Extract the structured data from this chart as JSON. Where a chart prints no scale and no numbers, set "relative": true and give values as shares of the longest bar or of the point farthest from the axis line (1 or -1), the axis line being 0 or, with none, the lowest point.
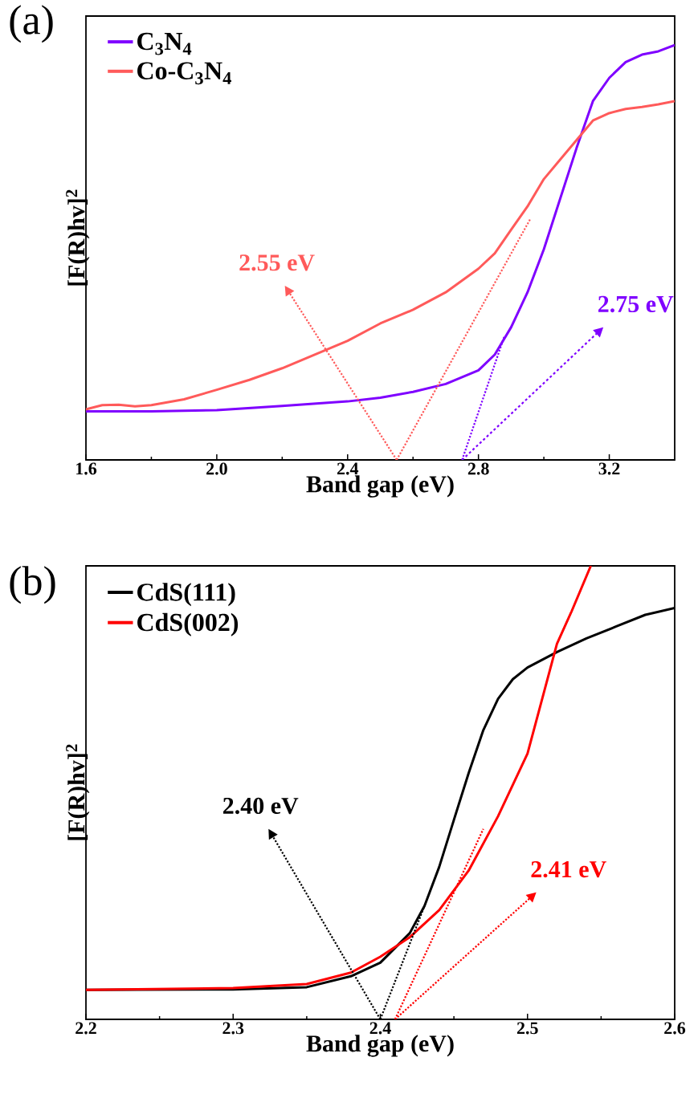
{
  "chart_data": [
    {
      "type": "line",
      "title": "(a)",
      "xlabel": "Band gap (eV)",
      "ylabel": "[F(R)hv]$^{2}$",
      "relative": true,
      "legend": "top left",
      "tick_labels": "x",
      "xlim": [
        1.6,
        3.4
      ],
      "xticks": [
        1.6,
        {
          "value": 2,
          "label": "2.0"
        },
        2.4,
        2.8,
        3.2
      ],
      "series": [
        {
          "name": "C$_{3}$N$_{4}$",
          "color": "#7f00ff",
          "line_style": "solid",
          "x": [
            1.6,
            1.8,
            2.0,
            2.2,
            2.4,
            2.5,
            2.6,
            2.7,
            2.8,
            2.85,
            2.9,
            2.95,
            3.0,
            3.05,
            3.1,
            3.15,
            3.2,
            3.25,
            3.3,
            3.35,
            3.4
          ],
          "values": [
            0.117,
            0.117,
            0.12,
            0.13,
            0.141,
            0.15,
            0.164,
            0.183,
            0.216,
            0.254,
            0.32,
            0.404,
            0.508,
            0.63,
            0.752,
            0.865,
            0.921,
            0.959,
            0.977,
            0.985,
            1.0
          ]
        },
        {
          "name": "Co-C$_{3}$N$_{4}$",
          "color": "#ff5a5a",
          "line_style": "solid",
          "x": [
            1.6,
            1.65,
            1.7,
            1.75,
            1.8,
            1.9,
            2.0,
            2.1,
            2.2,
            2.3,
            2.4,
            2.5,
            2.6,
            2.7,
            2.8,
            2.85,
            2.9,
            2.95,
            3.0,
            3.05,
            3.1,
            3.15,
            3.2,
            3.25,
            3.3,
            3.35,
            3.4
          ],
          "values": [
            0.122,
            0.132,
            0.133,
            0.129,
            0.132,
            0.146,
            0.169,
            0.193,
            0.221,
            0.254,
            0.287,
            0.329,
            0.362,
            0.404,
            0.461,
            0.498,
            0.555,
            0.611,
            0.677,
            0.724,
            0.771,
            0.818,
            0.836,
            0.846,
            0.851,
            0.857,
            0.865
          ]
        },
        {
          "type": "line",
          "color": "#7f00ff",
          "line_style": "dotted",
          "x": [
            2.75,
            2.88
          ],
          "values": [
            0,
            0.3
          ]
        },
        {
          "type": "line",
          "color": "#ff5a5a",
          "line_style": "dotted",
          "x": [
            2.55,
            2.96
          ],
          "values": [
            0,
            0.583
          ]
        }
      ],
      "annotations": [
        {
          "text": "2.75 eV",
          "x": 2.75,
          "y": 0
        },
        {
          "text": "2.55 eV",
          "x": 2.55,
          "y": 0
        }
      ]
    },
    {
      "type": "line",
      "title": "(b)",
      "xlabel": "Band gap (eV)",
      "ylabel": "[F(R)hv]$^{2}$",
      "relative": true,
      "legend": "top left",
      "tick_labels": "x",
      "xlim": [
        2.2,
        2.6
      ],
      "xticks": [
        2.2,
        2.3,
        2.4,
        2.5,
        2.6
      ],
      "series": [
        {
          "name": "CdS(111)",
          "color": "#000000",
          "line_style": "solid",
          "x": [
            2.2,
            2.3,
            2.35,
            2.38,
            2.4,
            2.42,
            2.43,
            2.44,
            2.45,
            2.46,
            2.47,
            2.48,
            2.49,
            2.5,
            2.52,
            2.54,
            2.56,
            2.58,
            2.6
          ],
          "values": [
            0.065,
            0.066,
            0.071,
            0.095,
            0.125,
            0.19,
            0.25,
            0.336,
            0.44,
            0.543,
            0.638,
            0.707,
            0.75,
            0.776,
            0.81,
            0.84,
            0.866,
            0.892,
            0.907
          ]
        },
        {
          "name": "CdS(002)",
          "color": "#ff0000",
          "line_style": "solid",
          "x": [
            2.2,
            2.3,
            2.35,
            2.38,
            2.4,
            2.42,
            2.44,
            2.46,
            2.48,
            2.5,
            2.52,
            2.53,
            2.543
          ],
          "values": [
            0.065,
            0.069,
            0.078,
            0.103,
            0.138,
            0.181,
            0.241,
            0.328,
            0.448,
            0.586,
            0.828,
            0.9,
            1.0
          ]
        },
        {
          "type": "line",
          "color": "#000000",
          "line_style": "dotted",
          "x": [
            2.4,
            2.43
          ],
          "values": [
            0,
            0.25
          ]
        },
        {
          "type": "line",
          "color": "#ff0000",
          "line_style": "dotted",
          "x": [
            2.41,
            2.47
          ],
          "values": [
            0,
            0.42
          ]
        }
      ],
      "annotations": [
        {
          "text": "2.40 eV",
          "x": 2.4,
          "y": 0
        },
        {
          "text": "2.41 eV",
          "x": 2.41,
          "y": 0
        }
      ]
    }
  ]
}
